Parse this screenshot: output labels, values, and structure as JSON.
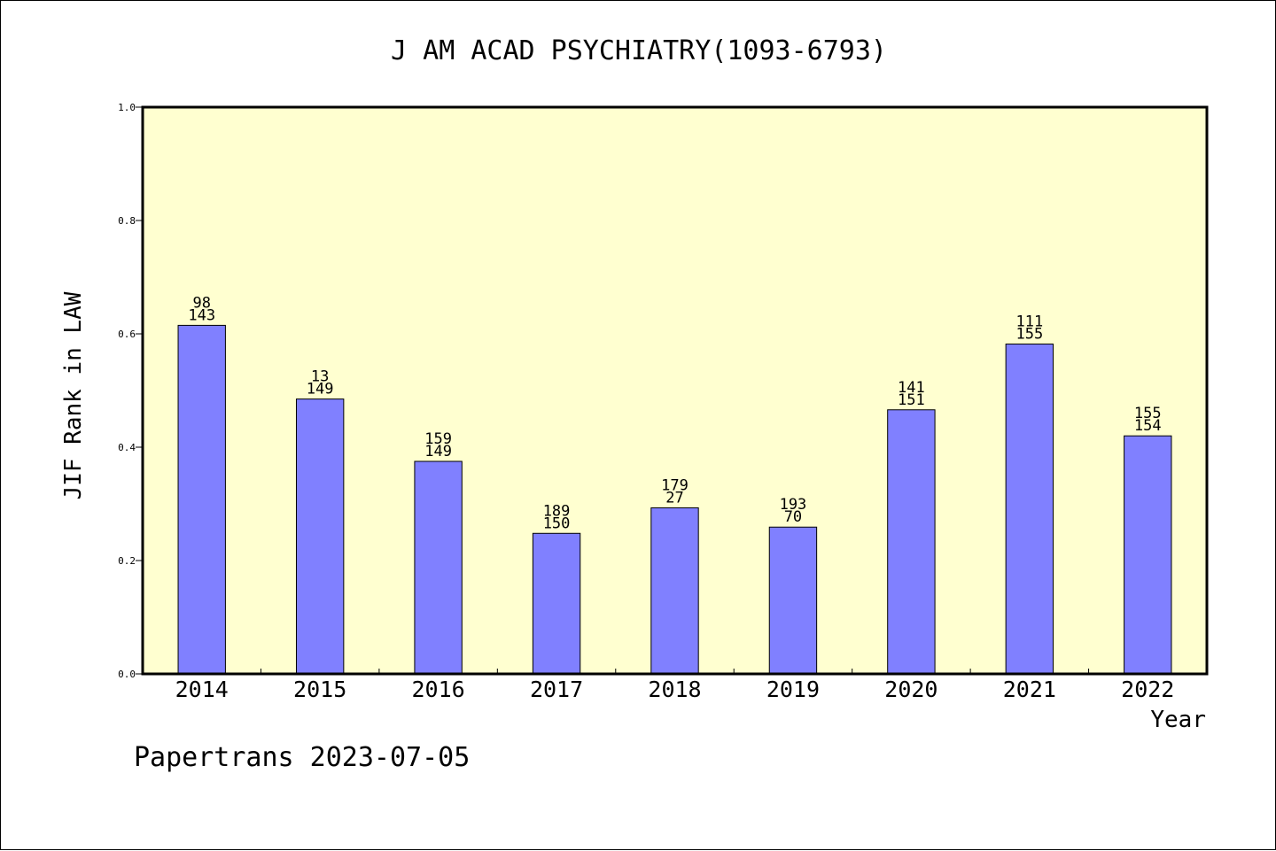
{
  "chart_data": {
    "type": "bar",
    "title": "J AM ACAD PSYCHIATRY(1093-6793)",
    "xlabel": "Year",
    "ylabel": "JIF Rank in LAW",
    "ylim": [
      0,
      1.0
    ],
    "yticks": [
      "0.0",
      "0.2",
      "0.4",
      "0.6",
      "0.8",
      "1.0"
    ],
    "categories": [
      "2014",
      "2015",
      "2016",
      "2017",
      "2018",
      "2019",
      "2020",
      "2021",
      "2022"
    ],
    "values": [
      0.615,
      0.485,
      0.375,
      0.248,
      0.293,
      0.259,
      0.466,
      0.582,
      0.42
    ],
    "labels_top": [
      "98",
      "13",
      "159",
      "189",
      "179",
      "193",
      "141",
      "111",
      "155"
    ],
    "labels_bottom": [
      "143",
      "149",
      "149",
      "150",
      "27",
      "70",
      "151",
      "155",
      "154"
    ],
    "grid": false,
    "legend": "none"
  },
  "footer": "Papertrans 2023-07-05",
  "colors": {
    "plot_bg": "#ffffd0",
    "bar": "#8080ff",
    "axis": "#000000"
  }
}
